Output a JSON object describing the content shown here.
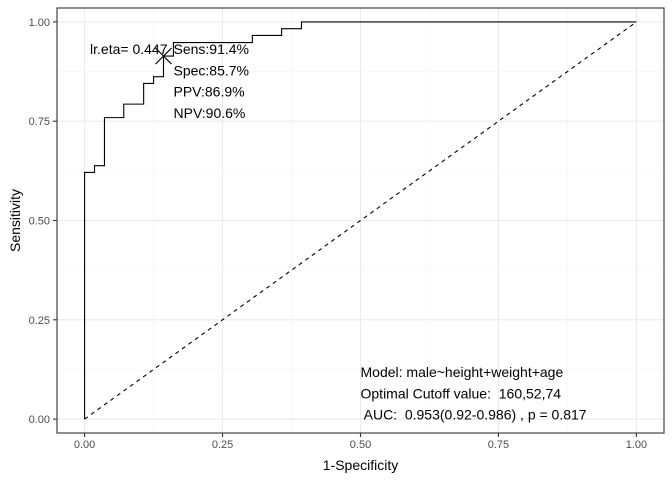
{
  "chart_data": {
    "type": "line",
    "xlabel": "1-Specificity",
    "ylabel": "Sensitivity",
    "xlim": [
      -0.05,
      1.05
    ],
    "ylim": [
      -0.035,
      1.035
    ],
    "x_ticks": [
      0,
      0.25,
      0.5,
      0.75,
      1
    ],
    "x_tick_labels": [
      "0.00",
      "0.25",
      "0.50",
      "0.75",
      "1.00"
    ],
    "y_ticks": [
      0,
      0.25,
      0.5,
      0.75,
      1
    ],
    "y_tick_labels": [
      "0.00",
      "0.25",
      "0.50",
      "0.75",
      "1.00"
    ],
    "grid": true,
    "series": [
      {
        "style": "solid",
        "color": "#000000",
        "step": true,
        "x": [
          0,
          0,
          0.018,
          0.018,
          0.036,
          0.036,
          0.071,
          0.071,
          0.107,
          0.107,
          0.125,
          0.125,
          0.143,
          0.143,
          0.161,
          0.161,
          0.304,
          0.304,
          0.357,
          0.357,
          0.393,
          0.393,
          1
        ],
        "y": [
          0,
          0.621,
          0.621,
          0.638,
          0.638,
          0.759,
          0.759,
          0.793,
          0.793,
          0.845,
          0.845,
          0.862,
          0.862,
          0.914,
          0.914,
          0.948,
          0.948,
          0.966,
          0.966,
          0.983,
          0.983,
          1,
          1
        ]
      },
      {
        "style": "dashed",
        "color": "#000000",
        "x": [
          0,
          1
        ],
        "y": [
          0,
          1
        ]
      }
    ],
    "optimal_point": {
      "x": 0.143,
      "y": 0.914,
      "marker": "x",
      "label": "lr.eta= 0.447",
      "stats": [
        "Sens:91.4%",
        "Spec:85.7%",
        "PPV:86.9%",
        "NPV:90.6%"
      ]
    },
    "annotation_lines": [
      "Model: male~height+weight+age",
      "Optimal Cutoff value:  160,52,74",
      " AUC:  0.953(0.92-0.986) , p = 0.817"
    ],
    "colors": {
      "panel_border": "#333333",
      "grid_major": "#ebebeb",
      "grid_minor": "#f5f5f5",
      "tick_text": "#4d4d4d"
    }
  }
}
